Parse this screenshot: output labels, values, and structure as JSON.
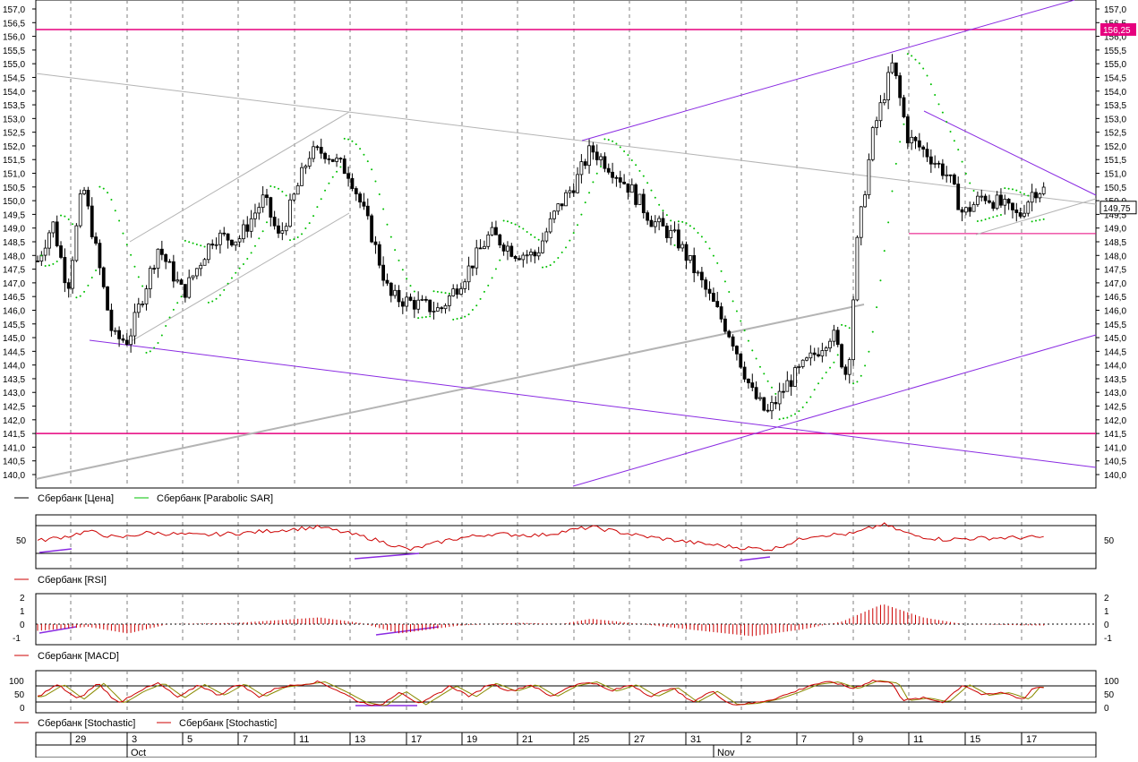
{
  "colors": {
    "price": "#000000",
    "sar": "#00c000",
    "indicator": "#cc0000",
    "magenta": "#e6007e",
    "purple": "#8a2be2",
    "gray_trend": "#b4b4b4",
    "grid": "#808080"
  },
  "legend": {
    "price": "Сбербанк [Цена]",
    "sar": "Сбербанк [Parabolic SAR]",
    "rsi": "Сбербанк [RSI]",
    "macd": "Сбербанк [MACD]",
    "stoch1": "Сбербанк [Stochastic]",
    "stoch2": "Сбербанк [Stochastic]"
  },
  "price_axis": {
    "min": 139.8,
    "max": 157.3,
    "ticks": [
      "140,0",
      "140,5",
      "141,0",
      "141,5",
      "142,0",
      "142,5",
      "143,0",
      "143,5",
      "144,0",
      "144,5",
      "145,0",
      "145,5",
      "146,0",
      "146,5",
      "147,0",
      "147,5",
      "148,0",
      "148,5",
      "149,0",
      "149,5",
      "150,0",
      "150,5",
      "151,0",
      "151,5",
      "152,0",
      "152,5",
      "153,0",
      "153,5",
      "154,0",
      "154,5",
      "155,0",
      "155,5",
      "156,0",
      "156,5",
      "157,0"
    ],
    "tick_values": [
      140,
      140.5,
      141,
      141.5,
      142,
      142.5,
      143,
      143.5,
      144,
      144.5,
      145,
      145.5,
      146,
      146.5,
      147,
      147.5,
      148,
      148.5,
      149,
      149.5,
      150,
      150.5,
      151,
      151.5,
      152,
      152.5,
      153,
      153.5,
      154,
      154.5,
      155,
      155.5,
      156,
      156.5,
      157
    ],
    "current_label": "149,75",
    "current_value": 149.75,
    "level_label": "156,25",
    "level_value": 156.25
  },
  "rsi_axis": {
    "label": "50"
  },
  "macd_axis": {
    "labels": [
      "2",
      "1",
      "0",
      "-1"
    ],
    "values": [
      2,
      1,
      0,
      -1
    ]
  },
  "stoch_axis": {
    "labels": [
      "100",
      "50",
      "0"
    ],
    "values": [
      100,
      50,
      0
    ]
  },
  "date_axis": {
    "days": [
      "29",
      "3",
      "5",
      "7",
      "11",
      "13",
      "17",
      "19",
      "21",
      "25",
      "27",
      "31",
      "2",
      "7",
      "9",
      "11",
      "15",
      "17"
    ],
    "months": [
      "Oct",
      "Nov"
    ]
  },
  "chart_data": {
    "type": "candlestick",
    "series_keyframes": [
      {
        "x": 0.0,
        "price": 147.8
      },
      {
        "x": 0.015,
        "price": 149.2
      },
      {
        "x": 0.03,
        "price": 146.8
      },
      {
        "x": 0.045,
        "price": 150.6
      },
      {
        "x": 0.058,
        "price": 148.2
      },
      {
        "x": 0.075,
        "price": 145.0
      },
      {
        "x": 0.09,
        "price": 144.9
      },
      {
        "x": 0.12,
        "price": 148.3
      },
      {
        "x": 0.145,
        "price": 146.6
      },
      {
        "x": 0.175,
        "price": 148.7
      },
      {
        "x": 0.2,
        "price": 148.6
      },
      {
        "x": 0.225,
        "price": 150.1
      },
      {
        "x": 0.24,
        "price": 148.6
      },
      {
        "x": 0.27,
        "price": 151.7
      },
      {
        "x": 0.285,
        "price": 151.8
      },
      {
        "x": 0.31,
        "price": 151.0
      },
      {
        "x": 0.33,
        "price": 149.0
      },
      {
        "x": 0.35,
        "price": 146.5
      },
      {
        "x": 0.38,
        "price": 146.2
      },
      {
        "x": 0.4,
        "price": 146.0
      },
      {
        "x": 0.425,
        "price": 147.3
      },
      {
        "x": 0.45,
        "price": 148.8
      },
      {
        "x": 0.475,
        "price": 148.1
      },
      {
        "x": 0.495,
        "price": 148.0
      },
      {
        "x": 0.515,
        "price": 149.6
      },
      {
        "x": 0.535,
        "price": 150.7
      },
      {
        "x": 0.55,
        "price": 151.9
      },
      {
        "x": 0.57,
        "price": 151.2
      },
      {
        "x": 0.59,
        "price": 150.4
      },
      {
        "x": 0.61,
        "price": 149.3
      },
      {
        "x": 0.635,
        "price": 148.6
      },
      {
        "x": 0.66,
        "price": 147.0
      },
      {
        "x": 0.69,
        "price": 145.0
      },
      {
        "x": 0.71,
        "price": 143.0
      },
      {
        "x": 0.725,
        "price": 142.2
      },
      {
        "x": 0.745,
        "price": 143.3
      },
      {
        "x": 0.77,
        "price": 144.3
      },
      {
        "x": 0.79,
        "price": 145.2
      },
      {
        "x": 0.805,
        "price": 143.5
      },
      {
        "x": 0.815,
        "price": 148.6
      },
      {
        "x": 0.83,
        "price": 152.4
      },
      {
        "x": 0.85,
        "price": 155.0
      },
      {
        "x": 0.865,
        "price": 152.3
      },
      {
        "x": 0.885,
        "price": 151.7
      },
      {
        "x": 0.905,
        "price": 150.9
      },
      {
        "x": 0.92,
        "price": 149.5
      },
      {
        "x": 0.94,
        "price": 150.2
      },
      {
        "x": 0.96,
        "price": 149.8
      },
      {
        "x": 0.975,
        "price": 149.4
      },
      {
        "x": 0.99,
        "price": 150.4
      }
    ],
    "horizontal_levels": [
      156.25,
      141.5
    ],
    "support_segment": 148.8,
    "rsi_keyframes": [
      {
        "x": 0.0,
        "v": 48
      },
      {
        "x": 0.03,
        "v": 55
      },
      {
        "x": 0.05,
        "v": 62
      },
      {
        "x": 0.08,
        "v": 52
      },
      {
        "x": 0.11,
        "v": 60
      },
      {
        "x": 0.16,
        "v": 56
      },
      {
        "x": 0.21,
        "v": 60
      },
      {
        "x": 0.28,
        "v": 68
      },
      {
        "x": 0.33,
        "v": 52
      },
      {
        "x": 0.37,
        "v": 35
      },
      {
        "x": 0.41,
        "v": 50
      },
      {
        "x": 0.45,
        "v": 58
      },
      {
        "x": 0.5,
        "v": 56
      },
      {
        "x": 0.55,
        "v": 68
      },
      {
        "x": 0.6,
        "v": 55
      },
      {
        "x": 0.66,
        "v": 44
      },
      {
        "x": 0.7,
        "v": 38
      },
      {
        "x": 0.73,
        "v": 36
      },
      {
        "x": 0.77,
        "v": 56
      },
      {
        "x": 0.81,
        "v": 58
      },
      {
        "x": 0.84,
        "v": 72
      },
      {
        "x": 0.87,
        "v": 56
      },
      {
        "x": 0.9,
        "v": 50
      },
      {
        "x": 0.94,
        "v": 52
      },
      {
        "x": 0.99,
        "v": 53
      }
    ],
    "macd_keyframes": [
      {
        "x": 0.0,
        "v": -0.5
      },
      {
        "x": 0.05,
        "v": -0.2
      },
      {
        "x": 0.09,
        "v": -0.7
      },
      {
        "x": 0.13,
        "v": 0.0
      },
      {
        "x": 0.2,
        "v": 0.1
      },
      {
        "x": 0.28,
        "v": 0.5
      },
      {
        "x": 0.32,
        "v": 0.1
      },
      {
        "x": 0.36,
        "v": -0.7
      },
      {
        "x": 0.42,
        "v": -0.1
      },
      {
        "x": 0.48,
        "v": 0.1
      },
      {
        "x": 0.52,
        "v": 0.0
      },
      {
        "x": 0.55,
        "v": 0.4
      },
      {
        "x": 0.6,
        "v": 0.0
      },
      {
        "x": 0.66,
        "v": -0.5
      },
      {
        "x": 0.71,
        "v": -0.9
      },
      {
        "x": 0.76,
        "v": -0.4
      },
      {
        "x": 0.8,
        "v": 0.2
      },
      {
        "x": 0.84,
        "v": 1.5
      },
      {
        "x": 0.88,
        "v": 0.5
      },
      {
        "x": 0.92,
        "v": 0.0
      },
      {
        "x": 0.99,
        "v": -0.1
      }
    ],
    "stoch_keyframes": [
      {
        "x": 0.0,
        "v": 40
      },
      {
        "x": 0.02,
        "v": 85
      },
      {
        "x": 0.04,
        "v": 30
      },
      {
        "x": 0.06,
        "v": 90
      },
      {
        "x": 0.08,
        "v": 15
      },
      {
        "x": 0.1,
        "v": 60
      },
      {
        "x": 0.12,
        "v": 90
      },
      {
        "x": 0.14,
        "v": 35
      },
      {
        "x": 0.16,
        "v": 85
      },
      {
        "x": 0.18,
        "v": 45
      },
      {
        "x": 0.2,
        "v": 88
      },
      {
        "x": 0.22,
        "v": 40
      },
      {
        "x": 0.24,
        "v": 75
      },
      {
        "x": 0.26,
        "v": 85
      },
      {
        "x": 0.28,
        "v": 95
      },
      {
        "x": 0.3,
        "v": 60
      },
      {
        "x": 0.32,
        "v": 20
      },
      {
        "x": 0.34,
        "v": 5
      },
      {
        "x": 0.36,
        "v": 60
      },
      {
        "x": 0.38,
        "v": 10
      },
      {
        "x": 0.41,
        "v": 80
      },
      {
        "x": 0.43,
        "v": 40
      },
      {
        "x": 0.45,
        "v": 90
      },
      {
        "x": 0.47,
        "v": 60
      },
      {
        "x": 0.49,
        "v": 85
      },
      {
        "x": 0.51,
        "v": 40
      },
      {
        "x": 0.53,
        "v": 80
      },
      {
        "x": 0.55,
        "v": 95
      },
      {
        "x": 0.57,
        "v": 60
      },
      {
        "x": 0.59,
        "v": 85
      },
      {
        "x": 0.61,
        "v": 40
      },
      {
        "x": 0.63,
        "v": 75
      },
      {
        "x": 0.65,
        "v": 20
      },
      {
        "x": 0.67,
        "v": 60
      },
      {
        "x": 0.69,
        "v": 10
      },
      {
        "x": 0.71,
        "v": 15
      },
      {
        "x": 0.73,
        "v": 30
      },
      {
        "x": 0.75,
        "v": 55
      },
      {
        "x": 0.77,
        "v": 85
      },
      {
        "x": 0.79,
        "v": 95
      },
      {
        "x": 0.81,
        "v": 70
      },
      {
        "x": 0.83,
        "v": 100
      },
      {
        "x": 0.85,
        "v": 90
      },
      {
        "x": 0.86,
        "v": 25
      },
      {
        "x": 0.88,
        "v": 35
      },
      {
        "x": 0.9,
        "v": 20
      },
      {
        "x": 0.92,
        "v": 85
      },
      {
        "x": 0.94,
        "v": 45
      },
      {
        "x": 0.96,
        "v": 55
      },
      {
        "x": 0.98,
        "v": 30
      },
      {
        "x": 0.99,
        "v": 75
      }
    ]
  }
}
